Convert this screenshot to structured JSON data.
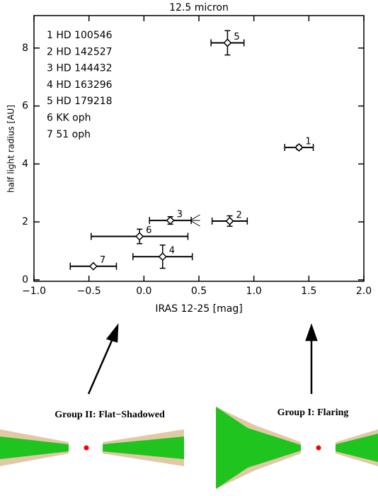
{
  "chart_data": {
    "type": "scatter",
    "title": "12.5 micron",
    "x_label": "IRAS 12-25 [mag]",
    "y_label": "half light radius [AU]",
    "xlim": [
      -1.0,
      2.0
    ],
    "xticks": [
      {
        "value": -1.0,
        "label": "−1.0"
      },
      {
        "value": -0.5,
        "label": "−0.5"
      },
      {
        "value": 0,
        "label": "0.0"
      },
      {
        "value": 0.5,
        "label": "0.5"
      },
      {
        "value": 1.0,
        "label": "1.0"
      },
      {
        "value": 1.5,
        "label": "1.5"
      },
      {
        "value": 2.0,
        "label": "2.0"
      }
    ],
    "ylim": [
      -0.05,
      9.12
    ],
    "yticks": [
      0,
      2,
      4,
      6,
      8
    ],
    "legend": [
      "1 HD 100546",
      "2 HD 142527",
      "3 HD 144432",
      "4 HD 163296",
      "5 HD 179218",
      "6 KK oph",
      "7 51 oph"
    ],
    "series": [
      {
        "color": "#000000",
        "point_labels": [
          "1",
          "2",
          "3",
          "4",
          "5",
          "6",
          "7"
        ],
        "x": [
          1.41,
          0.78,
          0.24,
          0.17,
          0.76,
          -0.04,
          -0.46
        ],
        "values": [
          4.57,
          2.03,
          2.05,
          0.8,
          8.18,
          1.5,
          0.47
        ],
        "xerr": [
          0.13,
          0.16,
          0.19,
          0.27,
          0.15,
          0.44,
          0.21
        ],
        "yerr": [
          0.07,
          0.18,
          0.13,
          0.4,
          0.42,
          0.25,
          0.0
        ],
        "x_limit": [
          null,
          null,
          0.51,
          null,
          null,
          null,
          null
        ]
      }
    ],
    "annotations": [
      "Group II: Flat−Shadowed",
      "Group I: Flaring"
    ]
  }
}
